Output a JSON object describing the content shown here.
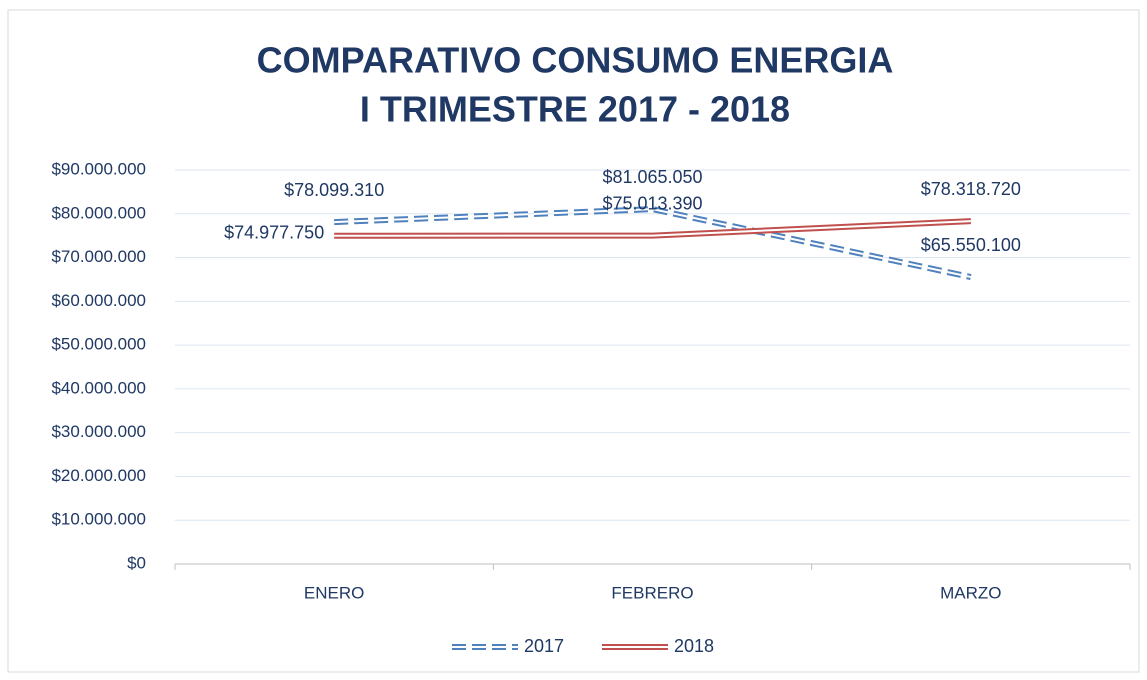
{
  "chart_data": {
    "type": "line",
    "title": [
      "COMPARATIVO CONSUMO ENERGIA",
      "I TRIMESTRE 2017 - 2018"
    ],
    "categories": [
      "ENERO",
      "FEBRERO",
      "MARZO"
    ],
    "series": [
      {
        "name": "2017",
        "color": "#4f81bd",
        "style": "dashed",
        "values": [
          78099310,
          81065050,
          65550100
        ],
        "value_labels": [
          "$78.099.310",
          "$81.065.050",
          "$65.550.100"
        ]
      },
      {
        "name": "2018",
        "color": "#c0504d",
        "style": "solid",
        "values": [
          74977750,
          75013390,
          78318720
        ],
        "value_labels": [
          "$74.977.750",
          "$75.013.390",
          "$78.318.720"
        ]
      }
    ],
    "ylim": [
      0,
      90000000
    ],
    "yticks": [
      {
        "value": 0,
        "label": "$0"
      },
      {
        "value": 10000000,
        "label": "$10.000.000"
      },
      {
        "value": 20000000,
        "label": "$20.000.000"
      },
      {
        "value": 30000000,
        "label": "$30.000.000"
      },
      {
        "value": 40000000,
        "label": "$40.000.000"
      },
      {
        "value": 50000000,
        "label": "$50.000.000"
      },
      {
        "value": 60000000,
        "label": "$60.000.000"
      },
      {
        "value": 70000000,
        "label": "$70.000.000"
      },
      {
        "value": 80000000,
        "label": "$80.000.000"
      },
      {
        "value": 90000000,
        "label": "$90.000.000"
      }
    ],
    "grid": true,
    "legend": "bottom"
  }
}
